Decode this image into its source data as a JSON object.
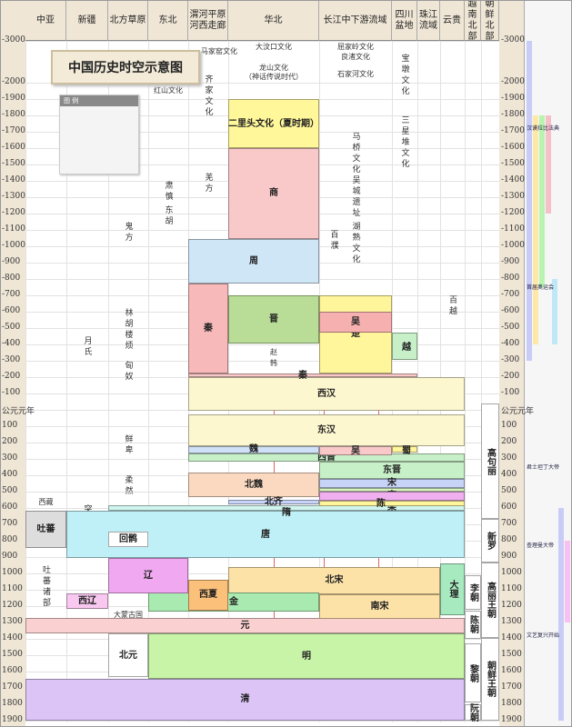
{
  "title": "中国历史时空示意图",
  "legend": {
    "title": "图 例"
  },
  "chart_data": {
    "type": "timeline",
    "title": "中国历史时空示意图",
    "ylim": [
      -3000,
      1900
    ],
    "regions": [
      "中亚",
      "新疆",
      "北方草原",
      "东北",
      "渭河平原 河西走廊",
      "华北",
      "长江中下游流域",
      "四川盆地",
      "珠江流域",
      "云贵",
      "越南北部",
      "朝鲜北部"
    ],
    "ticks": [
      {
        "year": -3000,
        "label": "-3000"
      },
      {
        "year": -2000,
        "label": "-2000"
      },
      {
        "year": -1900,
        "label": "-1900"
      },
      {
        "year": -1800,
        "label": "-1800"
      },
      {
        "year": -1700,
        "label": "-1700"
      },
      {
        "year": -1600,
        "label": "-1600"
      },
      {
        "year": -1500,
        "label": "-1500"
      },
      {
        "year": -1400,
        "label": "-1400"
      },
      {
        "year": -1300,
        "label": "-1300"
      },
      {
        "year": -1200,
        "label": "-1200"
      },
      {
        "year": -1100,
        "label": "-1100"
      },
      {
        "year": -1000,
        "label": "-1000"
      },
      {
        "year": -900,
        "label": "-900"
      },
      {
        "year": -800,
        "label": "-800"
      },
      {
        "year": -700,
        "label": "-700"
      },
      {
        "year": -600,
        "label": "-600"
      },
      {
        "year": -500,
        "label": "-500"
      },
      {
        "year": -400,
        "label": "-400"
      },
      {
        "year": -300,
        "label": "-300"
      },
      {
        "year": -200,
        "label": "-200"
      },
      {
        "year": -100,
        "label": "-100"
      },
      {
        "year": 0,
        "label": "公元元年"
      },
      {
        "year": 100,
        "label": "100"
      },
      {
        "year": 200,
        "label": "200"
      },
      {
        "year": 300,
        "label": "300"
      },
      {
        "year": 400,
        "label": "400"
      },
      {
        "year": 500,
        "label": "500"
      },
      {
        "year": 600,
        "label": "600"
      },
      {
        "year": 700,
        "label": "700"
      },
      {
        "year": 800,
        "label": "800"
      },
      {
        "year": 900,
        "label": "900"
      },
      {
        "year": 1000,
        "label": "1000"
      },
      {
        "year": 1100,
        "label": "1100"
      },
      {
        "year": 1200,
        "label": "1200"
      },
      {
        "year": 1300,
        "label": "1300"
      },
      {
        "year": 1400,
        "label": "1400"
      },
      {
        "year": 1500,
        "label": "1500"
      },
      {
        "year": 1600,
        "label": "1600"
      },
      {
        "year": 1700,
        "label": "1700"
      },
      {
        "year": 1800,
        "label": "1800"
      },
      {
        "year": 1900,
        "label": "1900"
      }
    ],
    "polities": [
      {
        "name": "二里头文化（夏时期）",
        "start": -1900,
        "end": -1600,
        "region_from": 5,
        "region_to": 5,
        "color": "#fff79a"
      },
      {
        "name": "商",
        "start": -1600,
        "end": -1046,
        "region_from": 5,
        "region_to": 5,
        "color": "#f9c8c8"
      },
      {
        "name": "周",
        "start": -1046,
        "end": -771,
        "region_from": 4,
        "region_to": 5,
        "color": "#cfe6f7"
      },
      {
        "name": "秦",
        "start": -770,
        "end": -221,
        "region_from": 4,
        "region_to": 4,
        "color": "#f7b9b9"
      },
      {
        "name": "晋",
        "start": -700,
        "end": -403,
        "region_from": 5,
        "region_to": 5,
        "color": "#b9dd96"
      },
      {
        "name": "楚",
        "start": -700,
        "end": -223,
        "region_from": 6,
        "region_to": 6,
        "color": "#fff59a"
      },
      {
        "name": "吴",
        "start": -600,
        "end": -473,
        "region_from": 6,
        "region_to": 6,
        "color": "#f7b0b0"
      },
      {
        "name": "越",
        "start": -470,
        "end": -306,
        "region_from": 7,
        "region_to": 7,
        "color": "#c8f0c8"
      },
      {
        "name": "秦",
        "start": -221,
        "end": -207,
        "region_from": 4,
        "region_to": 7,
        "color": "#f9c8c8"
      },
      {
        "name": "西汉",
        "start": -202,
        "end": 8,
        "region_from": 4,
        "region_to": 9,
        "color": "#fdf7cf"
      },
      {
        "name": "东汉",
        "start": 25,
        "end": 220,
        "region_from": 4,
        "region_to": 9,
        "color": "#fdf7cf"
      },
      {
        "name": "魏",
        "start": 220,
        "end": 265,
        "region_from": 4,
        "region_to": 5,
        "color": "#cfe0f7"
      },
      {
        "name": "吴",
        "start": 220,
        "end": 280,
        "region_from": 6,
        "region_to": 6,
        "color": "#f9c8c8"
      },
      {
        "name": "蜀",
        "start": 221,
        "end": 263,
        "region_from": 7,
        "region_to": 7,
        "color": "#fff59a"
      },
      {
        "name": "西晋",
        "start": 265,
        "end": 316,
        "region_from": 4,
        "region_to": 9,
        "color": "#c8f0c8"
      },
      {
        "name": "东晋",
        "start": 317,
        "end": 420,
        "region_from": 6,
        "region_to": 9,
        "color": "#c8f0c8"
      },
      {
        "name": "北魏",
        "start": 386,
        "end": 534,
        "region_from": 4,
        "region_to": 5,
        "color": "#fbd9c0"
      },
      {
        "name": "宋",
        "start": 420,
        "end": 479,
        "region_from": 6,
        "region_to": 9,
        "color": "#c8d4f7"
      },
      {
        "name": "齐",
        "start": 479,
        "end": 502,
        "region_from": 6,
        "region_to": 9,
        "color": "#d6f3c0"
      },
      {
        "name": "梁",
        "start": 502,
        "end": 557,
        "region_from": 6,
        "region_to": 9,
        "color": "#f0b0f0"
      },
      {
        "name": "陈",
        "start": 557,
        "end": 589,
        "region_from": 6,
        "region_to": 9,
        "color": "#fff59a"
      },
      {
        "name": "北齐",
        "start": 550,
        "end": 577,
        "region_from": 5,
        "region_to": 5,
        "color": "#c8d4f7"
      },
      {
        "name": "隋",
        "start": 581,
        "end": 618,
        "region_from": 2,
        "region_to": 9,
        "color": "#d0f4ee"
      },
      {
        "name": "唐",
        "start": 618,
        "end": 907,
        "region_from": 1,
        "region_to": 9,
        "color": "#bff0f7"
      },
      {
        "name": "吐蕃",
        "start": 618,
        "end": 842,
        "region_from": 0,
        "region_to": 0,
        "color": "#dddddd"
      },
      {
        "name": "回鹘",
        "start": 744,
        "end": 840,
        "region_from": 2,
        "region_to": 2,
        "color": "#ffffff"
      },
      {
        "name": "辽",
        "start": 907,
        "end": 1125,
        "region_from": 2,
        "region_to": 3,
        "color": "#f0a8f0"
      },
      {
        "name": "北宋",
        "start": 960,
        "end": 1127,
        "region_from": 5,
        "region_to": 8,
        "color": "#fde2a8"
      },
      {
        "name": "西夏",
        "start": 1038,
        "end": 1227,
        "region_from": 4,
        "region_to": 4,
        "color": "#fbc07a"
      },
      {
        "name": "大理",
        "start": 937,
        "end": 1253,
        "region_from": 9,
        "region_to": 9,
        "color": "#a8eac0"
      },
      {
        "name": "西辽",
        "start": 1124,
        "end": 1218,
        "region_from": 1,
        "region_to": 1,
        "color": "#f8c8f0"
      },
      {
        "name": "金",
        "start": 1115,
        "end": 1234,
        "region_from": 3,
        "region_to": 5,
        "color": "#a8eab0"
      },
      {
        "name": "南宋",
        "start": 1127,
        "end": 1279,
        "region_from": 6,
        "region_to": 8,
        "color": "#fde2a8"
      },
      {
        "name": "元",
        "start": 1271,
        "end": 1368,
        "region_from": 0,
        "region_to": 9,
        "color": "#fbd0d0"
      },
      {
        "name": "北元",
        "start": 1368,
        "end": 1635,
        "region_from": 2,
        "region_to": 2,
        "color": "#ffffff"
      },
      {
        "name": "明",
        "start": 1368,
        "end": 1644,
        "region_from": 3,
        "region_to": 9,
        "color": "#c8f4a8"
      },
      {
        "name": "清",
        "start": 1644,
        "end": 1900,
        "region_from": 0,
        "region_to": 9,
        "color": "#dcc4f7"
      },
      {
        "name": "高句丽",
        "start": -37,
        "end": 668,
        "region_from": 11,
        "region_to": 11,
        "color": "#ffffff"
      },
      {
        "name": "新罗",
        "start": 668,
        "end": 935,
        "region_from": 11,
        "region_to": 11,
        "color": "#ffffff"
      },
      {
        "name": "高丽王朝",
        "start": 935,
        "end": 1392,
        "region_from": 11,
        "region_to": 11,
        "color": "#ffffff"
      },
      {
        "name": "朝鲜王朝",
        "start": 1392,
        "end": 1900,
        "region_from": 11,
        "region_to": 11,
        "color": "#ffffff"
      },
      {
        "name": "李朝",
        "start": 1009,
        "end": 1225,
        "region_from": 10,
        "region_to": 10,
        "color": "#ffffff"
      },
      {
        "name": "陈朝",
        "start": 1225,
        "end": 1400,
        "region_from": 10,
        "region_to": 10,
        "color": "#ffffff"
      },
      {
        "name": "黎朝",
        "start": 1428,
        "end": 1789,
        "region_from": 10,
        "region_to": 10,
        "color": "#ffffff"
      },
      {
        "name": "阮朝",
        "start": 1802,
        "end": 1900,
        "region_from": 10,
        "region_to": 10,
        "color": "#ffffff"
      }
    ],
    "cultures": [
      {
        "name": "红山文化",
        "year": -2950,
        "region": 3
      },
      {
        "name": "马家窑文化",
        "year": -2850,
        "region": 4
      },
      {
        "name": "大汶口文化",
        "year": -2950,
        "region": 5
      },
      {
        "name": "屈家岭文化",
        "year": -2950,
        "region": 6
      },
      {
        "name": "良渚文化",
        "year": -2850,
        "region": 6
      },
      {
        "name": "龙山文化",
        "year": -2450,
        "region": 5
      },
      {
        "name": "（神话传说时代）",
        "year": -2300,
        "region": 5
      },
      {
        "name": "石家河文化",
        "year": -2300,
        "region": 6
      },
      {
        "name": "宝墩文化",
        "year": -2700,
        "region": 7,
        "vertical": true
      },
      {
        "name": "齐家文化",
        "year": -2200,
        "region": 4,
        "vertical": true
      },
      {
        "name": "岳石文化",
        "year": -1850,
        "region": 5,
        "vertical": true
      },
      {
        "name": "马桥文化",
        "year": -1700,
        "region": 6,
        "vertical": true
      },
      {
        "name": "三星堆文化",
        "year": -1800,
        "region": 7,
        "vertical": true
      },
      {
        "name": "吴城遗址",
        "year": -1450,
        "region": 6,
        "vertical": true
      },
      {
        "name": "湖熟文化",
        "year": -1150,
        "region": 6,
        "vertical": true
      },
      {
        "name": "百濮",
        "year": -1100,
        "region": 6,
        "vertical": true
      },
      {
        "name": "百越",
        "year": -700,
        "region": 9,
        "vertical": true
      },
      {
        "name": "羌方",
        "year": -1450,
        "region": 4,
        "vertical": true
      },
      {
        "name": "鬼方",
        "year": -1450,
        "region": 5,
        "vertical": true
      },
      {
        "name": "土方",
        "year": -1500,
        "region": 5,
        "vertical": true
      },
      {
        "name": "肃慎",
        "year": -1400,
        "region": 3,
        "vertical": true
      },
      {
        "name": "东胡",
        "year": -1250,
        "region": 3,
        "vertical": true
      },
      {
        "name": "鬼方",
        "year": -1150,
        "region": 2,
        "vertical": true
      },
      {
        "name": "林胡",
        "year": -620,
        "region": 2,
        "vertical": true
      },
      {
        "name": "楼烦",
        "year": -620,
        "region": 2,
        "vertical": true
      },
      {
        "name": "月氏",
        "year": -450,
        "region": 1,
        "vertical": true
      },
      {
        "name": "匈奴",
        "year": -300,
        "region": 2,
        "vertical": true
      },
      {
        "name": "鲜卑",
        "year": 150,
        "region": 2,
        "vertical": true
      },
      {
        "name": "柔然",
        "year": 400,
        "region": 2,
        "vertical": true
      },
      {
        "name": "突厥",
        "year": 580,
        "region": 1,
        "vertical": true
      },
      {
        "name": "西藏",
        "year": 540,
        "region": 0
      },
      {
        "name": "吐蕃诸部",
        "year": 950,
        "region": 0,
        "vertical": true
      },
      {
        "name": "大蒙古国",
        "year": 1230,
        "region": 2
      },
      {
        "name": "犬戎",
        "year": -750,
        "region": 4,
        "vertical": true
      },
      {
        "name": "燕",
        "year": -450,
        "region": 5
      },
      {
        "name": "齐",
        "year": -500,
        "region": 5
      },
      {
        "name": "赵",
        "year": -380,
        "region": 5
      },
      {
        "name": "魏",
        "year": -420,
        "region": 4
      },
      {
        "name": "韩",
        "year": -380,
        "region": 5
      }
    ],
    "world_events": [
      {
        "name": "汉谟拉比法典",
        "year": -1750
      },
      {
        "name": "首届奥运会",
        "year": -776
      },
      {
        "name": "君士坦丁大帝",
        "year": 320
      },
      {
        "name": "查理曼大帝",
        "year": 800
      },
      {
        "name": "文艺复兴开始",
        "year": 1350
      }
    ],
    "world_bands": [
      {
        "start": -3000,
        "end": -300,
        "color": "#c8ccf7"
      },
      {
        "start": -1800,
        "end": -400,
        "color": "#fde8a8"
      },
      {
        "start": -1800,
        "end": -750,
        "color": "#b8f4b0"
      },
      {
        "start": -1800,
        "end": -1200,
        "color": "#f7c0c8"
      },
      {
        "start": -800,
        "end": -400,
        "color": "#bfe8f7"
      },
      {
        "start": 600,
        "end": 1900,
        "color": "#c8ccf7"
      },
      {
        "start": 800,
        "end": 1300,
        "color": "#f7c0f0"
      }
    ]
  }
}
